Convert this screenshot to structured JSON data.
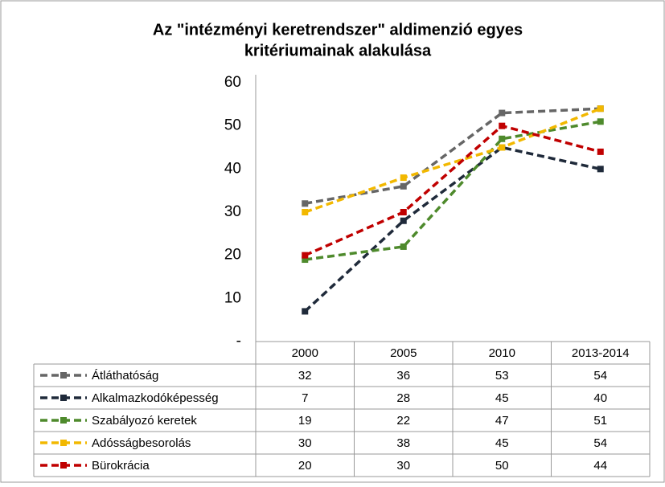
{
  "chart_data": {
    "type": "line",
    "title": [
      "Az \"intézményi keretrendszer\" aldimenzió egyes",
      "kritériumainak alakulása"
    ],
    "categories": [
      "2000",
      "2005",
      "2010",
      "2013-2014"
    ],
    "series": [
      {
        "name": "Átláthatóság",
        "color": "#666666",
        "values": [
          32,
          36,
          53,
          54
        ]
      },
      {
        "name": "Alkalmazkodóképesség",
        "color": "#1f2a3a",
        "values": [
          7,
          28,
          45,
          40
        ]
      },
      {
        "name": "Szabályozó keretek",
        "color": "#4e8a2c",
        "values": [
          19,
          22,
          47,
          51
        ]
      },
      {
        "name": "Adósságbesorolás",
        "color": "#f2b800",
        "values": [
          30,
          38,
          45,
          54
        ]
      },
      {
        "name": "Bürokrácia",
        "color": "#c00000",
        "values": [
          20,
          30,
          50,
          44
        ]
      }
    ],
    "ylim": [
      0,
      60
    ],
    "yticks": [
      {
        "value": 0,
        "label": "-"
      },
      10,
      20,
      30,
      40,
      50,
      60
    ]
  }
}
